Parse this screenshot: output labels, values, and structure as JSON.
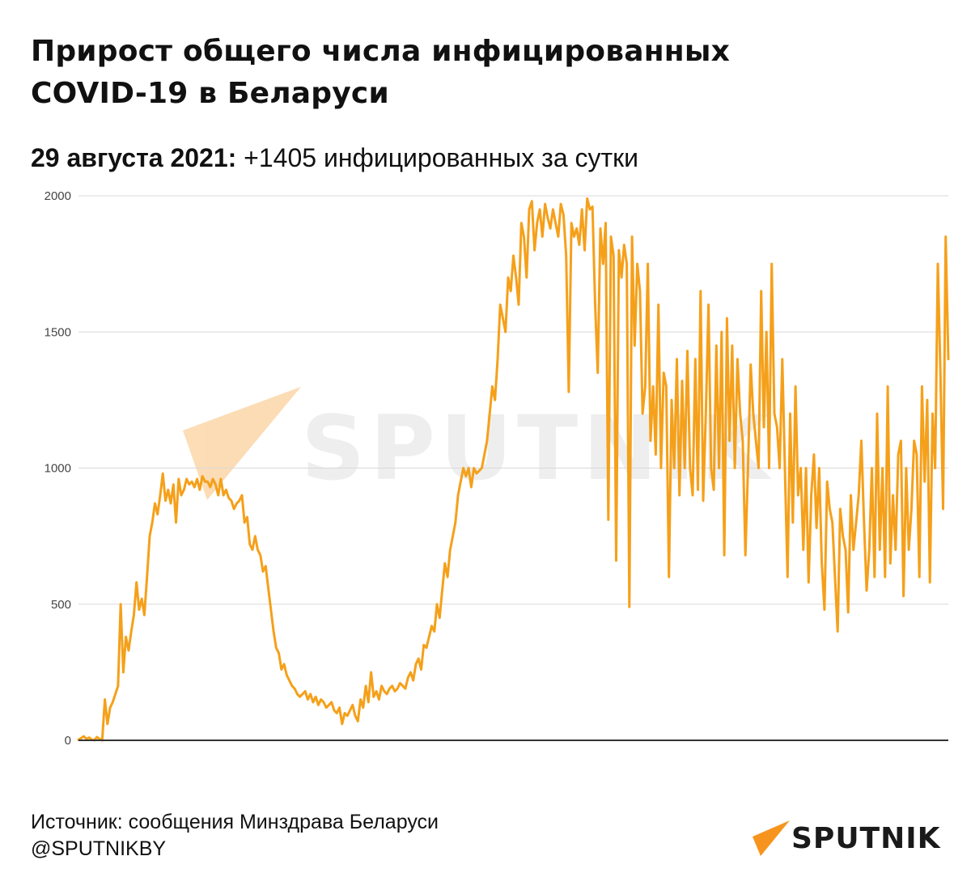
{
  "header": {
    "title_line1": "Прирост общего числа инфицированных",
    "title_line2": "COVID-19 в Беларуси",
    "subtitle_date": "29 августа 2021:",
    "subtitle_text": "+1405 инфицированных за сутки"
  },
  "footer": {
    "source": "Источник: сообщения Минздрава Беларуси",
    "handle": "@SPUTNIKBY"
  },
  "brand": {
    "name": "SPUTNIK",
    "watermark": "SPUTNIK",
    "color": "#f7941d"
  },
  "colors": {
    "line": "#f5a01a",
    "grid": "#d9d9d9",
    "axis": "#333333",
    "text": "#111111"
  },
  "chart_data": {
    "type": "line",
    "title": "",
    "xlabel": "",
    "ylabel": "",
    "ylim": [
      0,
      2000
    ],
    "yticks": [
      0,
      500,
      1000,
      1500,
      2000
    ],
    "grid": true,
    "legend": "none",
    "series": [
      {
        "values": [
          2,
          8,
          15,
          5,
          10,
          3,
          0,
          12,
          5,
          -2,
          150,
          60,
          120,
          140,
          170,
          200,
          500,
          250,
          380,
          330,
          400,
          460,
          580,
          480,
          520,
          460,
          600,
          750,
          800,
          870,
          830,
          900,
          980,
          880,
          920,
          870,
          940,
          800,
          960,
          900,
          920,
          960,
          940,
          950,
          930,
          960,
          920,
          970,
          950,
          950,
          930,
          960,
          940,
          900,
          960,
          900,
          920,
          890,
          880,
          850,
          870,
          880,
          900,
          800,
          820,
          720,
          700,
          750,
          700,
          680,
          620,
          640,
          560,
          480,
          400,
          340,
          320,
          260,
          280,
          240,
          220,
          200,
          190,
          170,
          160,
          170,
          180,
          150,
          170,
          140,
          160,
          130,
          150,
          140,
          120,
          130,
          140,
          110,
          100,
          120,
          60,
          100,
          90,
          110,
          130,
          90,
          70,
          150,
          120,
          200,
          140,
          250,
          160,
          180,
          150,
          200,
          180,
          170,
          190,
          200,
          180,
          190,
          210,
          200,
          190,
          230,
          250,
          220,
          280,
          300,
          260,
          350,
          340,
          380,
          420,
          400,
          500,
          450,
          550,
          650,
          600,
          700,
          750,
          800,
          900,
          950,
          1000,
          970,
          1000,
          930,
          1000,
          980,
          990,
          1000,
          1050,
          1100,
          1200,
          1300,
          1250,
          1400,
          1600,
          1550,
          1500,
          1700,
          1650,
          1780,
          1700,
          1600,
          1900,
          1850,
          1700,
          1950,
          1980,
          1800,
          1900,
          1950,
          1850,
          1970,
          1920,
          1880,
          1950,
          1900,
          1850,
          1970,
          1930,
          1780,
          1280,
          1900,
          1850,
          1880,
          1820,
          1950,
          1800,
          1990,
          1950,
          1960,
          1600,
          1350,
          1880,
          1750,
          1900,
          810,
          1850,
          1780,
          660,
          1800,
          1700,
          1820,
          1750,
          490,
          1850,
          1450,
          1750,
          1650,
          1200,
          1300,
          1750,
          1100,
          1300,
          1050,
          1600,
          1000,
          1350,
          1300,
          600,
          1250,
          1000,
          1400,
          900,
          1320,
          1000,
          1430,
          1000,
          900,
          1400,
          920,
          1650,
          880,
          1200,
          1600,
          1000,
          920,
          1450,
          1000,
          1500,
          680,
          1550,
          1100,
          1450,
          1000,
          1400,
          1200,
          1100,
          680,
          1000,
          1380,
          1200,
          1100,
          1000,
          1650,
          1150,
          1500,
          1000,
          1750,
          1200,
          1150,
          1000,
          1400,
          1000,
          600,
          1200,
          800,
          1300,
          900,
          1000,
          700,
          1000,
          580,
          900,
          1050,
          780,
          1000,
          650,
          480,
          950,
          850,
          800,
          600,
          400,
          850,
          750,
          700,
          470,
          900,
          700,
          800,
          900,
          1100,
          800,
          550,
          700,
          1000,
          600,
          1200,
          700,
          1000,
          600,
          1300,
          650,
          900,
          700,
          1050,
          1100,
          530,
          1000,
          700,
          850,
          1100,
          1050,
          600,
          1300,
          950,
          1250,
          580,
          1200,
          1000,
          1750,
          1350,
          850,
          1850,
          1400
        ]
      }
    ]
  }
}
